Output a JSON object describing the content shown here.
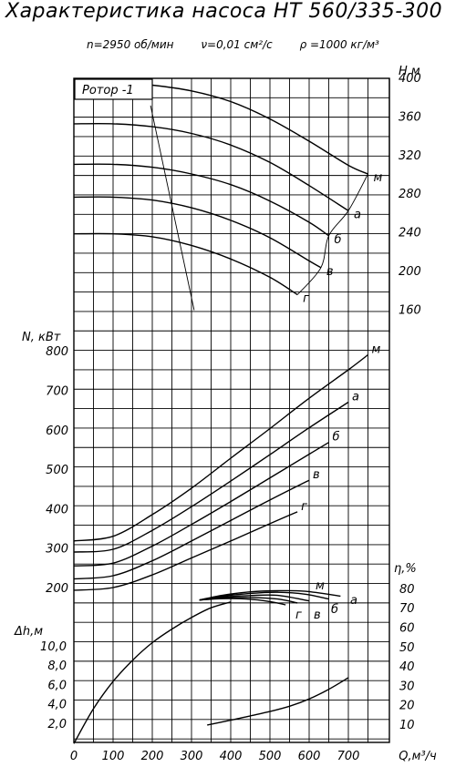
{
  "title": "Характеристика насоса НТ 560/335-300",
  "params": {
    "speed": "n=2950 об/мин",
    "viscosity": "ν=0,01 см²/с",
    "density": "ρ =1000 кг/м³"
  },
  "rotor_label": "Ротор -1",
  "chart_data": {
    "type": "line",
    "x": {
      "label": "Q,м³/ч",
      "range": [
        0,
        750
      ],
      "ticks": [
        0,
        100,
        200,
        300,
        400,
        500,
        600,
        700
      ]
    },
    "axes": {
      "H": {
        "label": "H,м",
        "side": "right",
        "range": [
          140,
          410
        ],
        "ticks": [
          160,
          200,
          240,
          280,
          320,
          360,
          400
        ]
      },
      "N": {
        "label": "N, кВт",
        "side": "left",
        "range": [
          170,
          860
        ],
        "ticks": [
          200,
          300,
          400,
          500,
          600,
          700,
          800
        ]
      },
      "eta": {
        "label": "η,%",
        "side": "right",
        "range": [
          0,
          85
        ],
        "ticks": [
          10,
          20,
          30,
          40,
          50,
          60,
          70,
          80
        ]
      },
      "dh": {
        "label": "Δh,м",
        "side": "left",
        "range": [
          0,
          11
        ],
        "ticks": [
          "2,0",
          "4,0",
          "6,0",
          "8,0",
          "10,0"
        ]
      }
    },
    "grid": true,
    "series": [
      {
        "group": "H",
        "name": "м",
        "points": [
          [
            0,
            395
          ],
          [
            100,
            395
          ],
          [
            200,
            392
          ],
          [
            300,
            386
          ],
          [
            400,
            375
          ],
          [
            500,
            357
          ],
          [
            600,
            334
          ],
          [
            700,
            309
          ],
          [
            750,
            300
          ]
        ]
      },
      {
        "group": "H",
        "name": "а",
        "points": [
          [
            0,
            352
          ],
          [
            100,
            352
          ],
          [
            200,
            349
          ],
          [
            300,
            342
          ],
          [
            400,
            330
          ],
          [
            500,
            312
          ],
          [
            600,
            288
          ],
          [
            700,
            262
          ]
        ]
      },
      {
        "group": "H",
        "name": "б",
        "points": [
          [
            0,
            310
          ],
          [
            100,
            310
          ],
          [
            200,
            307
          ],
          [
            300,
            300
          ],
          [
            400,
            289
          ],
          [
            500,
            272
          ],
          [
            600,
            250
          ],
          [
            650,
            236
          ]
        ]
      },
      {
        "group": "H",
        "name": "в",
        "points": [
          [
            0,
            276
          ],
          [
            100,
            276
          ],
          [
            200,
            273
          ],
          [
            300,
            265
          ],
          [
            400,
            252
          ],
          [
            500,
            234
          ],
          [
            600,
            210
          ],
          [
            630,
            203
          ]
        ]
      },
      {
        "group": "H",
        "name": "г",
        "points": [
          [
            0,
            238
          ],
          [
            100,
            238
          ],
          [
            200,
            235
          ],
          [
            300,
            226
          ],
          [
            400,
            212
          ],
          [
            500,
            193
          ],
          [
            570,
            175
          ]
        ]
      },
      {
        "group": "N",
        "name": "м",
        "points": [
          [
            0,
            318
          ],
          [
            100,
            330
          ],
          [
            200,
            385
          ],
          [
            300,
            452
          ],
          [
            400,
            528
          ],
          [
            500,
            603
          ],
          [
            600,
            680
          ],
          [
            700,
            752
          ],
          [
            750,
            790
          ]
        ]
      },
      {
        "group": "N",
        "name": "а",
        "points": [
          [
            0,
            290
          ],
          [
            100,
            297
          ],
          [
            200,
            345
          ],
          [
            300,
            405
          ],
          [
            400,
            470
          ],
          [
            500,
            537
          ],
          [
            600,
            605
          ],
          [
            700,
            670
          ]
        ]
      },
      {
        "group": "N",
        "name": "б",
        "points": [
          [
            0,
            255
          ],
          [
            100,
            262
          ],
          [
            200,
            305
          ],
          [
            300,
            360
          ],
          [
            400,
            418
          ],
          [
            500,
            478
          ],
          [
            600,
            538
          ],
          [
            650,
            568
          ]
        ]
      },
      {
        "group": "N",
        "name": "в",
        "points": [
          [
            0,
            222
          ],
          [
            100,
            230
          ],
          [
            200,
            268
          ],
          [
            300,
            318
          ],
          [
            400,
            370
          ],
          [
            500,
            422
          ],
          [
            600,
            472
          ]
        ]
      },
      {
        "group": "N",
        "name": "г",
        "points": [
          [
            0,
            193
          ],
          [
            100,
            200
          ],
          [
            200,
            232
          ],
          [
            300,
            275
          ],
          [
            400,
            318
          ],
          [
            500,
            362
          ],
          [
            570,
            392
          ]
        ]
      },
      {
        "group": "eta",
        "name": "м",
        "points": [
          [
            320,
            74
          ],
          [
            380,
            76.5
          ],
          [
            450,
            78.2
          ],
          [
            520,
            78.8
          ],
          [
            590,
            78.5
          ],
          [
            680,
            76
          ]
        ]
      },
      {
        "group": "eta",
        "name": "а",
        "points": [
          [
            320,
            74
          ],
          [
            380,
            76
          ],
          [
            450,
            77.4
          ],
          [
            520,
            78
          ],
          [
            590,
            77
          ],
          [
            650,
            74.5
          ]
        ]
      },
      {
        "group": "eta",
        "name": "б",
        "points": [
          [
            320,
            74
          ],
          [
            380,
            75.5
          ],
          [
            450,
            76.3
          ],
          [
            520,
            76.4
          ],
          [
            600,
            73.5
          ]
        ]
      },
      {
        "group": "eta",
        "name": "в",
        "points": [
          [
            320,
            74
          ],
          [
            380,
            75
          ],
          [
            450,
            75.3
          ],
          [
            520,
            74.5
          ],
          [
            570,
            72.5
          ]
        ]
      },
      {
        "group": "eta",
        "name": "г",
        "points": [
          [
            320,
            74
          ],
          [
            380,
            74.7
          ],
          [
            440,
            74.5
          ],
          [
            500,
            73.2
          ],
          [
            540,
            71.5
          ]
        ]
      },
      {
        "group": "eta",
        "name": "",
        "points": [
          [
            0,
            0
          ],
          [
            50,
            18
          ],
          [
            100,
            32
          ],
          [
            150,
            43
          ],
          [
            200,
            52
          ],
          [
            250,
            59
          ],
          [
            300,
            65
          ],
          [
            350,
            70
          ],
          [
            400,
            73
          ]
        ]
      },
      {
        "group": "dh",
        "name": "",
        "points": [
          [
            340,
            1.8
          ],
          [
            400,
            2.3
          ],
          [
            450,
            2.75
          ],
          [
            500,
            3.2
          ],
          [
            550,
            3.75
          ],
          [
            600,
            4.5
          ],
          [
            650,
            5.5
          ],
          [
            700,
            6.7
          ]
        ]
      }
    ],
    "boundary": {
      "group": "H",
      "points": [
        [
          330,
          225
        ],
        [
          370,
          385
        ]
      ]
    }
  }
}
